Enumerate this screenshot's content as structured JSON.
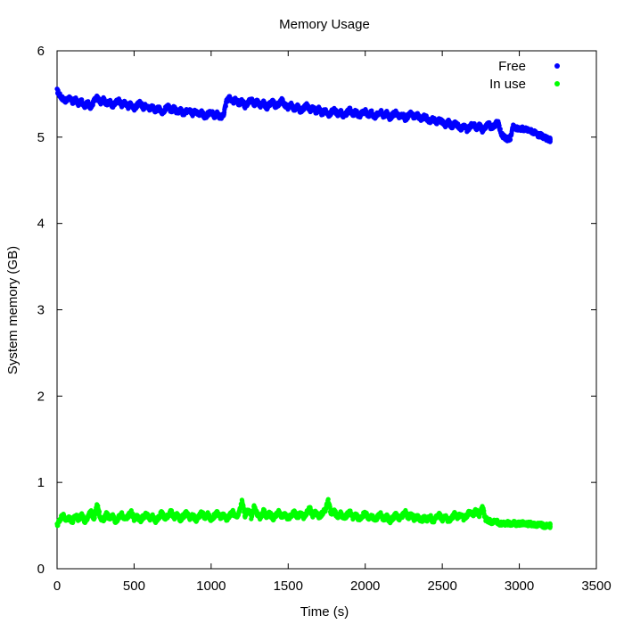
{
  "chart_data": {
    "type": "scatter",
    "title": "Memory Usage",
    "xlabel": "Time (s)",
    "ylabel": "System memory (GB)",
    "xlim": [
      0,
      3500
    ],
    "ylim": [
      0,
      6
    ],
    "xticks": [
      "0",
      "500",
      "1000",
      "1500",
      "2000",
      "2500",
      "3000",
      "3500"
    ],
    "yticks": [
      "0",
      "1",
      "2",
      "3",
      "4",
      "5",
      "6"
    ],
    "grid": false,
    "legend_position": "top-right",
    "series": [
      {
        "name": "Free",
        "color": "#0000ff",
        "marker": "asterisk",
        "points": [
          [
            0,
            5.54
          ],
          [
            20,
            5.48
          ],
          [
            40,
            5.44
          ],
          [
            60,
            5.42
          ],
          [
            80,
            5.46
          ],
          [
            100,
            5.4
          ],
          [
            120,
            5.44
          ],
          [
            140,
            5.38
          ],
          [
            160,
            5.42
          ],
          [
            180,
            5.36
          ],
          [
            200,
            5.4
          ],
          [
            220,
            5.34
          ],
          [
            240,
            5.42
          ],
          [
            260,
            5.46
          ],
          [
            280,
            5.4
          ],
          [
            300,
            5.44
          ],
          [
            320,
            5.38
          ],
          [
            340,
            5.42
          ],
          [
            360,
            5.36
          ],
          [
            380,
            5.4
          ],
          [
            400,
            5.43
          ],
          [
            420,
            5.37
          ],
          [
            440,
            5.41
          ],
          [
            460,
            5.35
          ],
          [
            480,
            5.39
          ],
          [
            500,
            5.33
          ],
          [
            520,
            5.37
          ],
          [
            540,
            5.4
          ],
          [
            560,
            5.34
          ],
          [
            580,
            5.38
          ],
          [
            600,
            5.32
          ],
          [
            620,
            5.36
          ],
          [
            640,
            5.3
          ],
          [
            660,
            5.34
          ],
          [
            680,
            5.28
          ],
          [
            700,
            5.32
          ],
          [
            720,
            5.36
          ],
          [
            740,
            5.3
          ],
          [
            760,
            5.34
          ],
          [
            780,
            5.28
          ],
          [
            800,
            5.32
          ],
          [
            820,
            5.26
          ],
          [
            840,
            5.3
          ],
          [
            860,
            5.33
          ],
          [
            880,
            5.27
          ],
          [
            900,
            5.31
          ],
          [
            920,
            5.25
          ],
          [
            940,
            5.29
          ],
          [
            960,
            5.23
          ],
          [
            980,
            5.27
          ],
          [
            1000,
            5.3
          ],
          [
            1020,
            5.24
          ],
          [
            1040,
            5.28
          ],
          [
            1060,
            5.22
          ],
          [
            1080,
            5.26
          ],
          [
            1100,
            5.42
          ],
          [
            1120,
            5.46
          ],
          [
            1140,
            5.4
          ],
          [
            1160,
            5.44
          ],
          [
            1180,
            5.38
          ],
          [
            1200,
            5.42
          ],
          [
            1220,
            5.36
          ],
          [
            1240,
            5.4
          ],
          [
            1260,
            5.44
          ],
          [
            1280,
            5.38
          ],
          [
            1300,
            5.42
          ],
          [
            1320,
            5.36
          ],
          [
            1340,
            5.4
          ],
          [
            1360,
            5.34
          ],
          [
            1380,
            5.38
          ],
          [
            1400,
            5.41
          ],
          [
            1420,
            5.35
          ],
          [
            1440,
            5.39
          ],
          [
            1460,
            5.43
          ],
          [
            1480,
            5.37
          ],
          [
            1500,
            5.34
          ],
          [
            1520,
            5.38
          ],
          [
            1540,
            5.32
          ],
          [
            1560,
            5.36
          ],
          [
            1580,
            5.3
          ],
          [
            1600,
            5.34
          ],
          [
            1620,
            5.37
          ],
          [
            1640,
            5.31
          ],
          [
            1660,
            5.35
          ],
          [
            1680,
            5.29
          ],
          [
            1700,
            5.33
          ],
          [
            1720,
            5.27
          ],
          [
            1740,
            5.31
          ],
          [
            1760,
            5.25
          ],
          [
            1780,
            5.29
          ],
          [
            1800,
            5.32
          ],
          [
            1820,
            5.26
          ],
          [
            1840,
            5.3
          ],
          [
            1860,
            5.24
          ],
          [
            1880,
            5.28
          ],
          [
            1900,
            5.32
          ],
          [
            1920,
            5.26
          ],
          [
            1940,
            5.3
          ],
          [
            1960,
            5.24
          ],
          [
            1980,
            5.28
          ],
          [
            2000,
            5.31
          ],
          [
            2020,
            5.25
          ],
          [
            2040,
            5.29
          ],
          [
            2060,
            5.23
          ],
          [
            2080,
            5.27
          ],
          [
            2100,
            5.3
          ],
          [
            2120,
            5.24
          ],
          [
            2140,
            5.28
          ],
          [
            2160,
            5.22
          ],
          [
            2180,
            5.26
          ],
          [
            2200,
            5.29
          ],
          [
            2220,
            5.23
          ],
          [
            2240,
            5.27
          ],
          [
            2260,
            5.21
          ],
          [
            2280,
            5.25
          ],
          [
            2300,
            5.28
          ],
          [
            2320,
            5.22
          ],
          [
            2340,
            5.26
          ],
          [
            2360,
            5.2
          ],
          [
            2380,
            5.24
          ],
          [
            2400,
            5.22
          ],
          [
            2420,
            5.18
          ],
          [
            2440,
            5.22
          ],
          [
            2460,
            5.16
          ],
          [
            2480,
            5.2
          ],
          [
            2500,
            5.18
          ],
          [
            2520,
            5.14
          ],
          [
            2540,
            5.18
          ],
          [
            2560,
            5.12
          ],
          [
            2580,
            5.16
          ],
          [
            2600,
            5.14
          ],
          [
            2620,
            5.1
          ],
          [
            2640,
            5.14
          ],
          [
            2660,
            5.08
          ],
          [
            2680,
            5.12
          ],
          [
            2700,
            5.16
          ],
          [
            2720,
            5.1
          ],
          [
            2740,
            5.14
          ],
          [
            2760,
            5.08
          ],
          [
            2780,
            5.12
          ],
          [
            2800,
            5.16
          ],
          [
            2820,
            5.1
          ],
          [
            2840,
            5.14
          ],
          [
            2860,
            5.18
          ],
          [
            2880,
            5.05
          ],
          [
            2900,
            5.0
          ],
          [
            2920,
            4.98
          ],
          [
            2940,
            4.98
          ],
          [
            2960,
            5.12
          ],
          [
            2980,
            5.1
          ],
          [
            3000,
            5.1
          ],
          [
            3020,
            5.1
          ],
          [
            3040,
            5.09
          ],
          [
            3060,
            5.08
          ],
          [
            3080,
            5.07
          ],
          [
            3100,
            5.05
          ],
          [
            3120,
            5.02
          ],
          [
            3140,
            5.02
          ],
          [
            3160,
            5.0
          ],
          [
            3180,
            4.98
          ],
          [
            3200,
            4.97
          ]
        ]
      },
      {
        "name": "In use",
        "color": "#00ff00",
        "marker": "asterisk",
        "points": [
          [
            0,
            0.5
          ],
          [
            20,
            0.58
          ],
          [
            40,
            0.62
          ],
          [
            60,
            0.56
          ],
          [
            80,
            0.6
          ],
          [
            100,
            0.54
          ],
          [
            120,
            0.62
          ],
          [
            140,
            0.57
          ],
          [
            160,
            0.63
          ],
          [
            180,
            0.55
          ],
          [
            200,
            0.6
          ],
          [
            220,
            0.66
          ],
          [
            240,
            0.58
          ],
          [
            260,
            0.74
          ],
          [
            280,
            0.6
          ],
          [
            300,
            0.56
          ],
          [
            320,
            0.64
          ],
          [
            340,
            0.58
          ],
          [
            360,
            0.62
          ],
          [
            380,
            0.55
          ],
          [
            400,
            0.59
          ],
          [
            420,
            0.63
          ],
          [
            440,
            0.57
          ],
          [
            460,
            0.61
          ],
          [
            480,
            0.66
          ],
          [
            500,
            0.58
          ],
          [
            520,
            0.62
          ],
          [
            540,
            0.56
          ],
          [
            560,
            0.6
          ],
          [
            580,
            0.64
          ],
          [
            600,
            0.57
          ],
          [
            620,
            0.61
          ],
          [
            640,
            0.55
          ],
          [
            660,
            0.6
          ],
          [
            680,
            0.65
          ],
          [
            700,
            0.58
          ],
          [
            720,
            0.62
          ],
          [
            740,
            0.66
          ],
          [
            760,
            0.59
          ],
          [
            780,
            0.63
          ],
          [
            800,
            0.57
          ],
          [
            820,
            0.61
          ],
          [
            840,
            0.65
          ],
          [
            860,
            0.58
          ],
          [
            880,
            0.62
          ],
          [
            900,
            0.56
          ],
          [
            920,
            0.6
          ],
          [
            940,
            0.66
          ],
          [
            960,
            0.59
          ],
          [
            980,
            0.63
          ],
          [
            1000,
            0.57
          ],
          [
            1020,
            0.61
          ],
          [
            1040,
            0.65
          ],
          [
            1060,
            0.59
          ],
          [
            1080,
            0.63
          ],
          [
            1100,
            0.57
          ],
          [
            1120,
            0.62
          ],
          [
            1140,
            0.66
          ],
          [
            1160,
            0.6
          ],
          [
            1180,
            0.64
          ],
          [
            1200,
            0.78
          ],
          [
            1220,
            0.62
          ],
          [
            1240,
            0.68
          ],
          [
            1260,
            0.6
          ],
          [
            1280,
            0.72
          ],
          [
            1300,
            0.63
          ],
          [
            1320,
            0.59
          ],
          [
            1340,
            0.67
          ],
          [
            1360,
            0.61
          ],
          [
            1380,
            0.65
          ],
          [
            1400,
            0.58
          ],
          [
            1420,
            0.62
          ],
          [
            1440,
            0.66
          ],
          [
            1460,
            0.6
          ],
          [
            1480,
            0.64
          ],
          [
            1500,
            0.58
          ],
          [
            1520,
            0.62
          ],
          [
            1540,
            0.66
          ],
          [
            1560,
            0.6
          ],
          [
            1580,
            0.64
          ],
          [
            1600,
            0.6
          ],
          [
            1620,
            0.65
          ],
          [
            1640,
            0.7
          ],
          [
            1660,
            0.62
          ],
          [
            1680,
            0.67
          ],
          [
            1700,
            0.6
          ],
          [
            1720,
            0.64
          ],
          [
            1740,
            0.68
          ],
          [
            1760,
            0.79
          ],
          [
            1780,
            0.63
          ],
          [
            1800,
            0.67
          ],
          [
            1820,
            0.6
          ],
          [
            1840,
            0.64
          ],
          [
            1860,
            0.58
          ],
          [
            1880,
            0.62
          ],
          [
            1900,
            0.66
          ],
          [
            1920,
            0.59
          ],
          [
            1940,
            0.63
          ],
          [
            1960,
            0.57
          ],
          [
            1980,
            0.61
          ],
          [
            2000,
            0.65
          ],
          [
            2020,
            0.58
          ],
          [
            2040,
            0.62
          ],
          [
            2060,
            0.56
          ],
          [
            2080,
            0.6
          ],
          [
            2100,
            0.64
          ],
          [
            2120,
            0.57
          ],
          [
            2140,
            0.61
          ],
          [
            2160,
            0.55
          ],
          [
            2180,
            0.59
          ],
          [
            2200,
            0.63
          ],
          [
            2220,
            0.57
          ],
          [
            2240,
            0.61
          ],
          [
            2260,
            0.66
          ],
          [
            2280,
            0.59
          ],
          [
            2300,
            0.63
          ],
          [
            2320,
            0.57
          ],
          [
            2340,
            0.61
          ],
          [
            2360,
            0.55
          ],
          [
            2380,
            0.59
          ],
          [
            2400,
            0.57
          ],
          [
            2420,
            0.61
          ],
          [
            2440,
            0.55
          ],
          [
            2460,
            0.59
          ],
          [
            2480,
            0.63
          ],
          [
            2500,
            0.57
          ],
          [
            2520,
            0.61
          ],
          [
            2540,
            0.55
          ],
          [
            2560,
            0.59
          ],
          [
            2580,
            0.63
          ],
          [
            2600,
            0.6
          ],
          [
            2620,
            0.64
          ],
          [
            2640,
            0.58
          ],
          [
            2660,
            0.62
          ],
          [
            2680,
            0.66
          ],
          [
            2700,
            0.62
          ],
          [
            2720,
            0.68
          ],
          [
            2740,
            0.6
          ],
          [
            2760,
            0.72
          ],
          [
            2780,
            0.58
          ],
          [
            2800,
            0.56
          ],
          [
            2820,
            0.54
          ],
          [
            2840,
            0.56
          ],
          [
            2860,
            0.54
          ],
          [
            2880,
            0.52
          ],
          [
            2900,
            0.52
          ],
          [
            2920,
            0.53
          ],
          [
            2940,
            0.52
          ],
          [
            2960,
            0.53
          ],
          [
            2980,
            0.52
          ],
          [
            3000,
            0.52
          ],
          [
            3020,
            0.53
          ],
          [
            3040,
            0.52
          ],
          [
            3060,
            0.52
          ],
          [
            3080,
            0.52
          ],
          [
            3100,
            0.51
          ],
          [
            3120,
            0.51
          ],
          [
            3140,
            0.51
          ],
          [
            3160,
            0.5
          ],
          [
            3180,
            0.5
          ],
          [
            3200,
            0.5
          ]
        ]
      }
    ]
  }
}
